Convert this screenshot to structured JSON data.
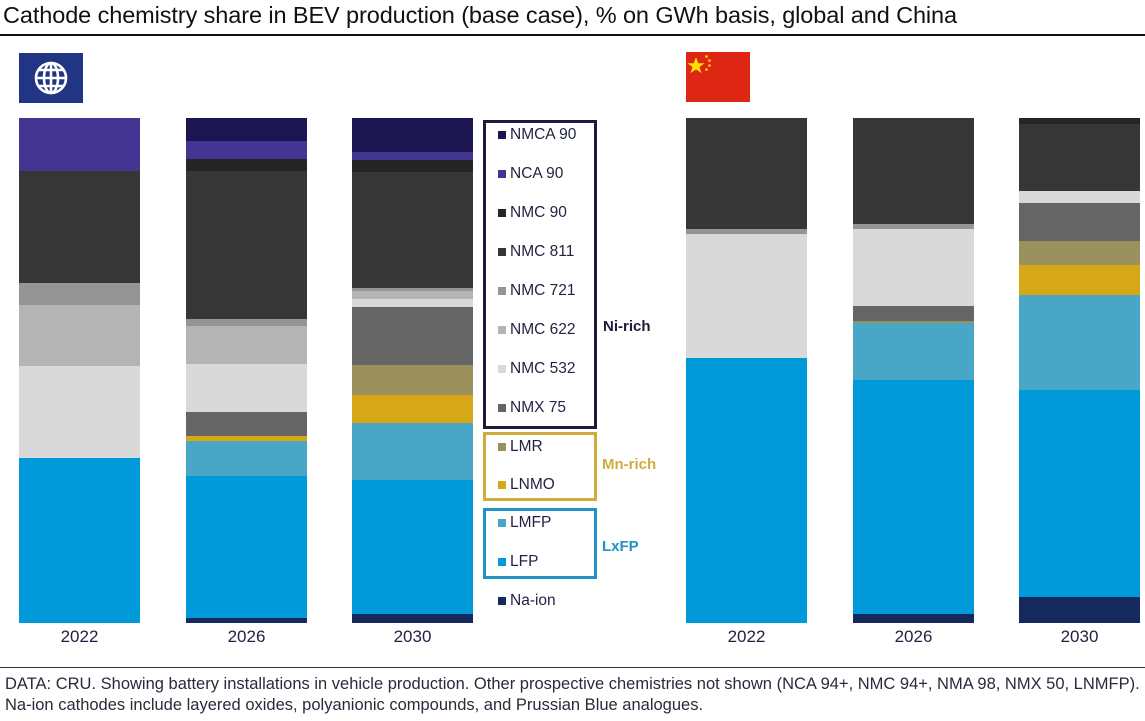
{
  "title": "Cathode chemistry share in BEV production (base case), % on GWh basis, global and China",
  "regions": [
    {
      "name": "Global",
      "icon": "globe-icon"
    },
    {
      "name": "China",
      "icon": "china-flag-icon"
    }
  ],
  "colors": {
    "NMCA 90": "#1c1650",
    "NCA 90": "#443592",
    "NMC 90": "#252525",
    "NMC 811": "#363636",
    "NMC 721": "#959595",
    "NMC 622": "#b4b4b4",
    "NMC 532": "#d9d9d9",
    "NMX 75": "#656565",
    "LMR": "#9b915d",
    "LNMO": "#d6a717",
    "LMFP": "#48a7c6",
    "LFP": "#009adb",
    "Na-ion": "#15295e"
  },
  "legend": {
    "groups": [
      {
        "label": "Ni-rich",
        "color": "#1c1b3d",
        "items": [
          "NMCA 90",
          "NCA 90",
          "NMC 90",
          "NMC 811",
          "NMC 721",
          "NMC 622",
          "NMC 532",
          "NMX 75"
        ]
      },
      {
        "label": "Mn-rich",
        "color": "#d0ac3c",
        "items": [
          "LMR",
          "LNMO"
        ]
      },
      {
        "label": "LxFP",
        "color": "#2094c4",
        "items": [
          "LMFP",
          "LFP"
        ]
      }
    ],
    "ungrouped": [
      "Na-ion"
    ]
  },
  "footnote": "DATA: CRU. Showing battery installations in vehicle production. Other prospective chemistries not shown (NCA 94+, NMC 94+, NMA 98, NMX 50, LNMFP). Na-ion cathodes include layered oxides, polyanionic compounds, and Prussian Blue analogues.",
  "chart_data": {
    "type": "bar",
    "stacked": true,
    "normalized_to": 100,
    "title": "Cathode chemistry share in BEV production (base case), % on GWh basis, global and China",
    "xlabel": "",
    "ylabel": "% on GWh basis",
    "ylim": [
      0,
      100
    ],
    "grid": false,
    "legend_position": "center",
    "stack_order_bottom_to_top": [
      "Na-ion",
      "LFP",
      "LMFP",
      "LNMO",
      "LMR",
      "NMX 75",
      "NMC 532",
      "NMC 622",
      "NMC 721",
      "NMC 811",
      "NMC 90",
      "NCA 90",
      "NMCA 90"
    ],
    "panels": [
      {
        "region": "Global",
        "categories": [
          "2022",
          "2026",
          "2030"
        ],
        "series": [
          {
            "name": "NMCA 90",
            "values": [
              0,
              4.6,
              6.7
            ]
          },
          {
            "name": "NCA 90",
            "values": [
              10.5,
              3.6,
              1.6
            ]
          },
          {
            "name": "NMC 90",
            "values": [
              0,
              2.4,
              2.4
            ]
          },
          {
            "name": "NMC 811",
            "values": [
              22.2,
              29.3,
              23.0
            ]
          },
          {
            "name": "NMC 721",
            "values": [
              4.4,
              1.4,
              0.6
            ]
          },
          {
            "name": "NMC 622",
            "values": [
              12.1,
              7.5,
              1.6
            ]
          },
          {
            "name": "NMC 532",
            "values": [
              18.2,
              9.5,
              1.6
            ]
          },
          {
            "name": "NMX 75",
            "values": [
              0,
              4.8,
              11.5
            ]
          },
          {
            "name": "LMR",
            "values": [
              0,
              0,
              5.9
            ]
          },
          {
            "name": "LNMO",
            "values": [
              0,
              1.0,
              5.5
            ]
          },
          {
            "name": "LMFP",
            "values": [
              0,
              6.9,
              11.3
            ]
          },
          {
            "name": "LFP",
            "values": [
              32.6,
              28.1,
              26.5
            ]
          },
          {
            "name": "Na-ion",
            "values": [
              0,
              1.0,
              1.8
            ]
          }
        ]
      },
      {
        "region": "China",
        "categories": [
          "2022",
          "2026",
          "2030"
        ],
        "series": [
          {
            "name": "NMCA 90",
            "values": [
              0,
              0,
              0
            ]
          },
          {
            "name": "NCA 90",
            "values": [
              0,
              0,
              0
            ]
          },
          {
            "name": "NMC 90",
            "values": [
              0,
              0,
              1.2
            ]
          },
          {
            "name": "NMC 811",
            "values": [
              22.0,
              21.0,
              13.3
            ]
          },
          {
            "name": "NMC 721",
            "values": [
              1.0,
              1.0,
              0
            ]
          },
          {
            "name": "NMC 622",
            "values": [
              0,
              0,
              0
            ]
          },
          {
            "name": "NMC 532",
            "values": [
              24.6,
              15.2,
              2.4
            ]
          },
          {
            "name": "NMX 75",
            "values": [
              0,
              3.0,
              7.5
            ]
          },
          {
            "name": "LMR",
            "values": [
              0,
              0.4,
              4.8
            ]
          },
          {
            "name": "LNMO",
            "values": [
              0,
              0,
              5.9
            ]
          },
          {
            "name": "LMFP",
            "values": [
              0,
              11.3,
              18.8
            ]
          },
          {
            "name": "LFP",
            "values": [
              52.5,
              46.3,
              41.0
            ]
          },
          {
            "name": "Na-ion",
            "values": [
              0,
              1.8,
              5.1
            ]
          }
        ]
      }
    ]
  }
}
